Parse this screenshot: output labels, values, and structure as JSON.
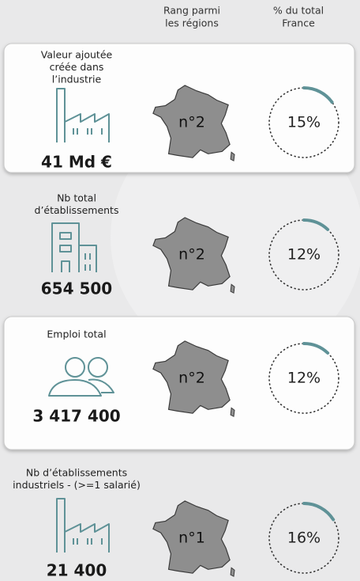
{
  "header": {
    "rank_heading": [
      "Rang parmi",
      "les régions"
    ],
    "share_heading": [
      "% du total",
      "France"
    ]
  },
  "rows": [
    {
      "label": [
        "Valeur ajoutée",
        "créée dans",
        "l’industrie"
      ],
      "value": "41 Md €",
      "rank": "n°2",
      "percent": {
        "value": 15,
        "label": "15%"
      }
    },
    {
      "label": [
        "Nb total",
        "d’établissements"
      ],
      "value": "654 500",
      "rank": "n°2",
      "percent": {
        "value": 12,
        "label": "12%"
      }
    },
    {
      "label": [
        "Emploi total"
      ],
      "value": "3 417 400",
      "rank": "n°2",
      "percent": {
        "value": 12,
        "label": "12%"
      }
    },
    {
      "label": [
        "Nb d’établissements",
        "industriels - (>=1 salarié)"
      ],
      "value": "21 400",
      "rank": "n°1",
      "percent": {
        "value": 16,
        "label": "16%"
      }
    }
  ]
}
